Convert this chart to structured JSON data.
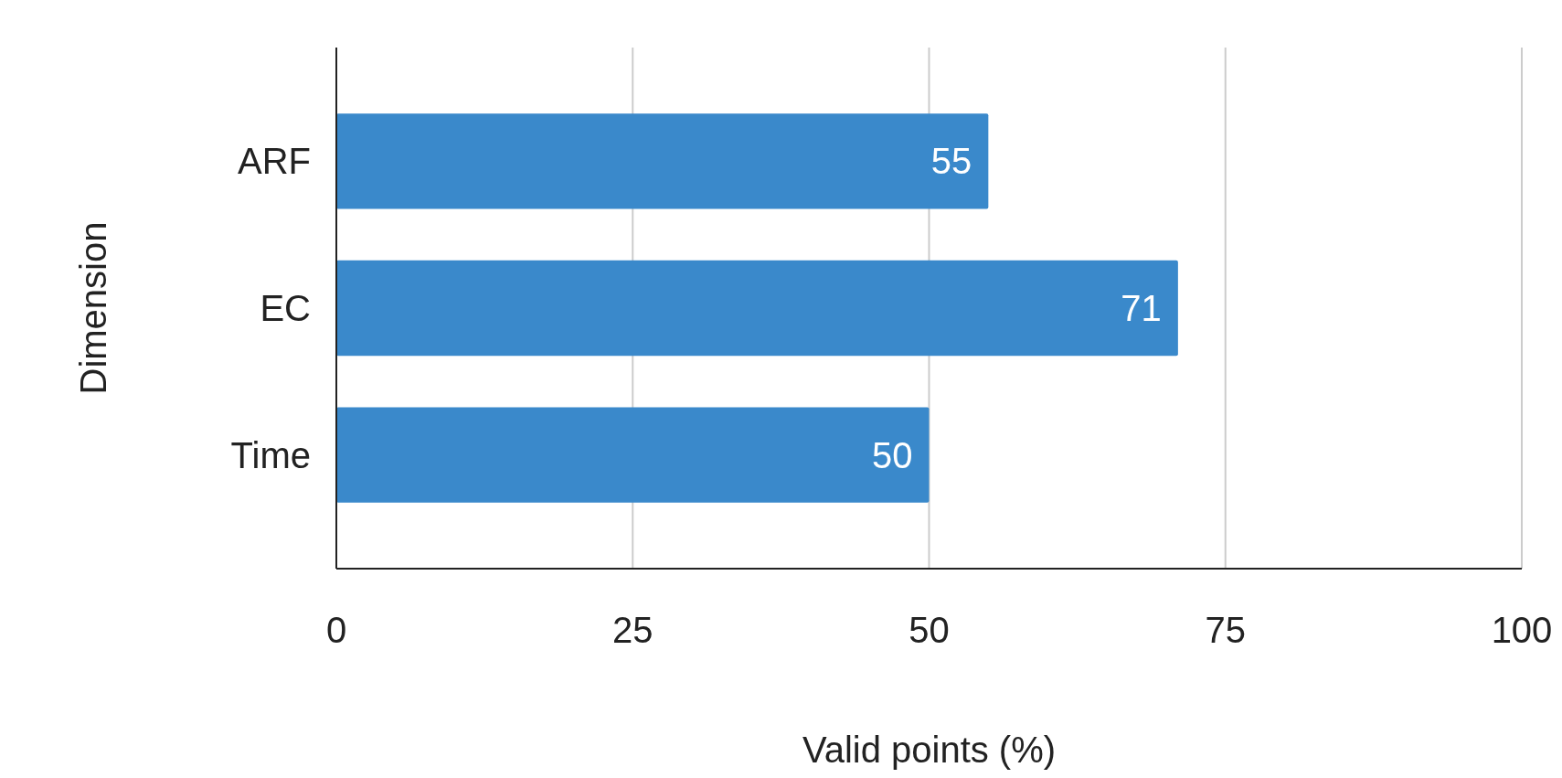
{
  "chart_data": {
    "type": "bar",
    "orientation": "horizontal",
    "xlabel": "Valid points (%)",
    "ylabel": "Dimension",
    "categories": [
      "ARF",
      "EC",
      "Time"
    ],
    "values": [
      55,
      71,
      50
    ],
    "color": "#3a89cb",
    "xlim": [
      0,
      100
    ],
    "xticks": [
      0,
      25,
      50,
      75,
      100
    ],
    "grid": "x",
    "data_labels": true
  }
}
